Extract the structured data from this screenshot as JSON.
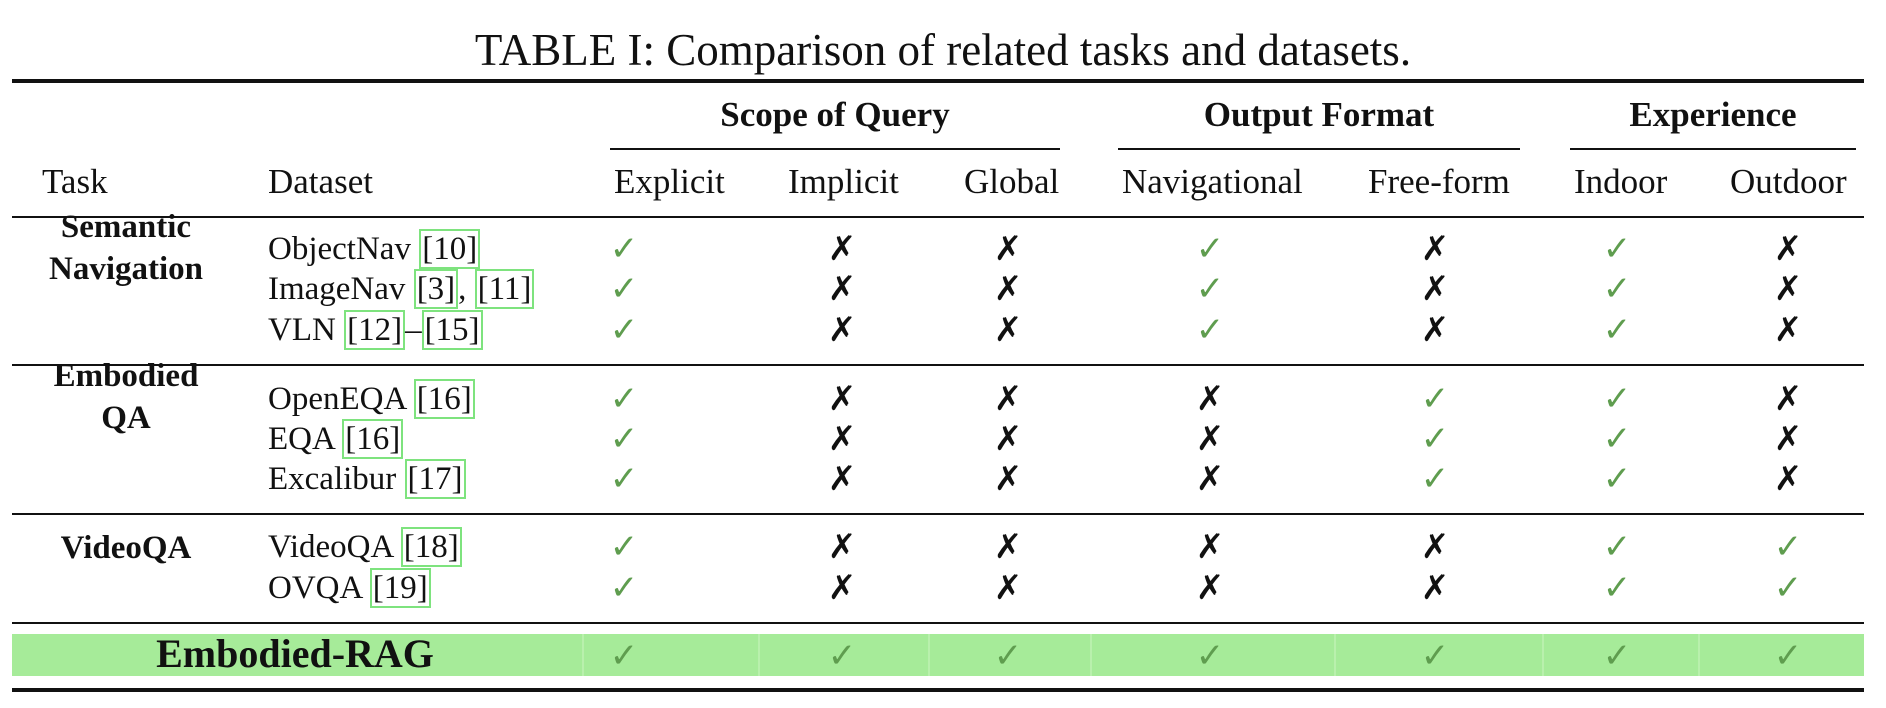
{
  "caption": "TABLE I: Comparison of related tasks and datasets.",
  "groups": [
    {
      "key": "scope",
      "label": "Scope of Query"
    },
    {
      "key": "output",
      "label": "Output Format"
    },
    {
      "key": "experience",
      "label": "Experience"
    }
  ],
  "columns": [
    "Task",
    "Dataset",
    "Explicit",
    "Implicit",
    "Global",
    "Navigational",
    "Free-form",
    "Indoor",
    "Outdoor"
  ],
  "symbols": {
    "yes": "✓",
    "no": "✗"
  },
  "colors": {
    "check": "#5f9d4f",
    "cross": "#111111",
    "highlight": "#a6eb99",
    "citation_box": "#7ee37e"
  },
  "sections": [
    {
      "task_lines": [
        "Semantic",
        "Navigation"
      ],
      "rows": [
        {
          "parts": [
            {
              "t": "ObjectNav "
            },
            {
              "t": "[10]",
              "cite": true
            }
          ],
          "marks": [
            "yes",
            "no",
            "no",
            "yes",
            "no",
            "yes",
            "no"
          ]
        },
        {
          "parts": [
            {
              "t": "ImageNav "
            },
            {
              "t": "[3]",
              "cite": true
            },
            {
              "t": ", "
            },
            {
              "t": "[11]",
              "cite": true
            }
          ],
          "marks": [
            "yes",
            "no",
            "no",
            "yes",
            "no",
            "yes",
            "no"
          ]
        },
        {
          "parts": [
            {
              "t": "VLN "
            },
            {
              "t": "[12]",
              "cite": true
            },
            {
              "t": "–"
            },
            {
              "t": "[15]",
              "cite": true
            }
          ],
          "marks": [
            "yes",
            "no",
            "no",
            "yes",
            "no",
            "yes",
            "no"
          ]
        }
      ]
    },
    {
      "task_lines": [
        "Embodied",
        "QA"
      ],
      "rows": [
        {
          "parts": [
            {
              "t": "OpenEQA "
            },
            {
              "t": "[16]",
              "cite": true
            }
          ],
          "marks": [
            "yes",
            "no",
            "no",
            "no",
            "yes",
            "yes",
            "no"
          ]
        },
        {
          "parts": [
            {
              "t": "EQA "
            },
            {
              "t": "[16]",
              "cite": true
            }
          ],
          "marks": [
            "yes",
            "no",
            "no",
            "no",
            "yes",
            "yes",
            "no"
          ]
        },
        {
          "parts": [
            {
              "t": "Excalibur "
            },
            {
              "t": "[17]",
              "cite": true
            }
          ],
          "marks": [
            "yes",
            "no",
            "no",
            "no",
            "yes",
            "yes",
            "no"
          ]
        }
      ]
    },
    {
      "task_lines": [
        "VideoQA"
      ],
      "rows": [
        {
          "parts": [
            {
              "t": "VideoQA "
            },
            {
              "t": "[18]",
              "cite": true
            }
          ],
          "marks": [
            "yes",
            "no",
            "no",
            "no",
            "no",
            "yes",
            "yes"
          ]
        },
        {
          "parts": [
            {
              "t": "OVQA "
            },
            {
              "t": "[19]",
              "cite": true
            }
          ],
          "marks": [
            "yes",
            "no",
            "no",
            "no",
            "no",
            "yes",
            "yes"
          ]
        }
      ]
    }
  ],
  "final_row": {
    "label": "Embodied-RAG",
    "marks": [
      "yes",
      "yes",
      "yes",
      "yes",
      "yes",
      "yes",
      "yes"
    ]
  }
}
